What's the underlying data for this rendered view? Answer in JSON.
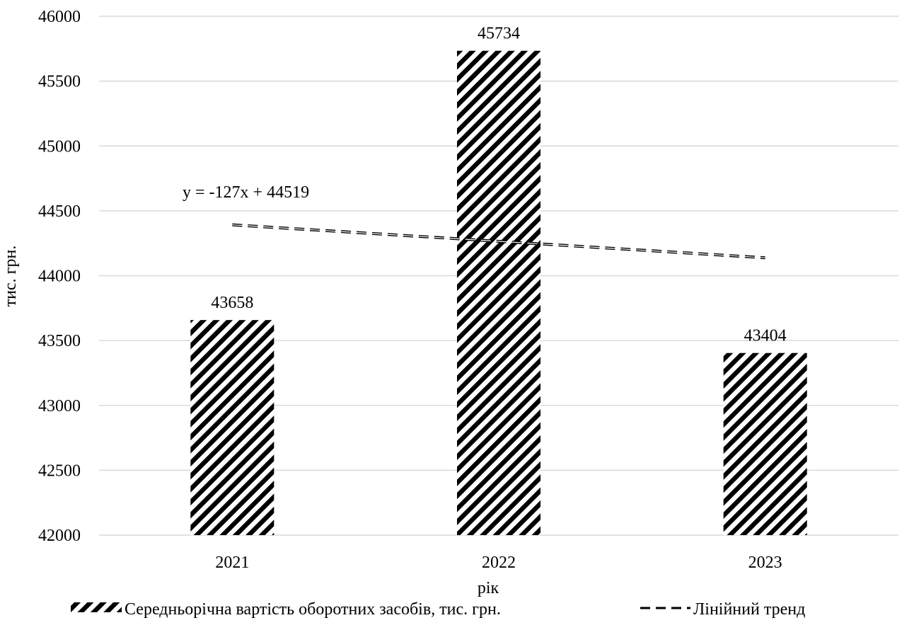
{
  "chart_data": {
    "type": "bar",
    "title": "",
    "xlabel": "рік",
    "ylabel": "тис. грн.",
    "categories": [
      "2021",
      "2022",
      "2023"
    ],
    "series": [
      {
        "name": "Середньорічна вартість оборотних засобів, тис. грн.",
        "values": [
          43658,
          45734,
          43404
        ],
        "data_labels": [
          "43658",
          "45734",
          "43404"
        ],
        "fill": "diagonal-hatch",
        "color": "#000000"
      }
    ],
    "trendline": {
      "name": "Лінійний тренд",
      "type": "linear",
      "equation": "y = -127x + 44519",
      "slope": -127,
      "intercept": 44519,
      "style": "dashed",
      "color": "#000000"
    },
    "ylim": [
      42000,
      46000
    ],
    "yticks": [
      "42000",
      "42500",
      "43000",
      "43500",
      "44000",
      "44500",
      "45000",
      "45500",
      "46000"
    ],
    "grid": "horizontal",
    "gridColor": "#d9d9d9",
    "legend": "bottom"
  }
}
